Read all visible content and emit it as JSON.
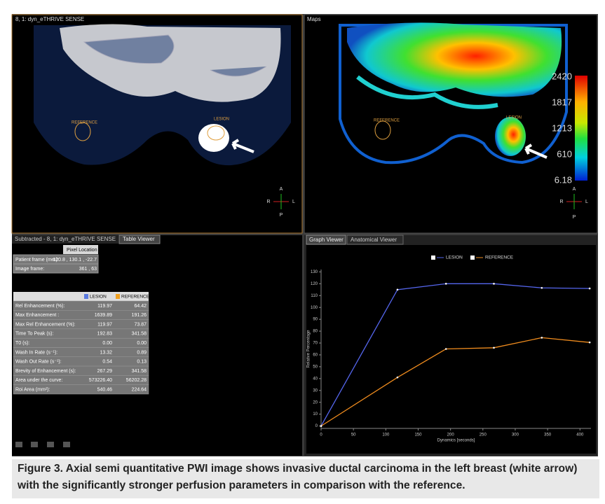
{
  "viewer": {
    "top_left": {
      "title": "8, 1: dyn_eTHRIVE SENSE",
      "roi_reference": "REFERENCE",
      "roi_lesion": "LESION",
      "orient": [
        "A",
        "R",
        "L",
        "P"
      ]
    },
    "top_right": {
      "title": "Maps",
      "roi_reference": "REFERENCE",
      "roi_lesion": "LESION",
      "colorbar_labels": [
        "2420",
        "1817",
        "1213",
        "610",
        "6.18"
      ],
      "orient": [
        "A",
        "R",
        "L",
        "P"
      ]
    },
    "bottom_left": {
      "tabs": [
        "Subtracted - 8, 1: dyn_eTHRIVE SENSE",
        "Table Viewer"
      ],
      "pixel_header": "Pixel Location",
      "pixel_rows": [
        [
          "Patient frame (mm):",
          "-120.8 , 130.1 , -22.7"
        ],
        [
          "Image frame:",
          "361 , 63"
        ]
      ],
      "param_header": [
        "LESION",
        "REFERENCE"
      ],
      "param_rows": [
        [
          "Rel Enhancement  (%):",
          "119.97",
          "64.42"
        ],
        [
          "Max Enhancement :",
          "1639.89",
          "191.26"
        ],
        [
          "Max Rel Enhancement (%):",
          "119.97",
          "73.87"
        ],
        [
          "Time To Peak  (s):",
          "192.83",
          "341.58"
        ],
        [
          "T0 (s):",
          "0.00",
          "0.00"
        ],
        [
          "Wash In Rate (s⁻¹):",
          "13.32",
          "0.89"
        ],
        [
          "Wash Out Rate (s⁻¹):",
          "0.54",
          "0.13"
        ],
        [
          "Brevity of Enhancement (s):",
          "267.29",
          "341.58"
        ],
        [
          "Area under the curve:",
          "573226.40",
          "56202.28"
        ],
        [
          "Roi Area (mm²):",
          "540.46",
          "224.64"
        ]
      ]
    },
    "bottom_right": {
      "tabs": [
        "Graph Viewer",
        "Anatomical Viewer"
      ]
    }
  },
  "chart_data": {
    "type": "line",
    "x_label": "Dynamics [seconds]",
    "y_label": "Relative Percentage",
    "x": [
      0,
      118,
      193,
      267,
      341,
      415
    ],
    "series": [
      {
        "name": "LESION",
        "color": "#5566ee",
        "values": [
          0,
          115,
          120,
          120,
          116.5,
          116
        ]
      },
      {
        "name": "REFERENCE",
        "color": "#f08c1e",
        "values": [
          0,
          41,
          65,
          66,
          74.5,
          70.5
        ]
      }
    ],
    "xlim": [
      0,
      417
    ],
    "ylim": [
      -2,
      132
    ],
    "xticks": [
      0,
      50,
      100,
      150,
      200,
      250,
      300,
      350,
      400
    ],
    "yticks": [
      0,
      10,
      20,
      30,
      40,
      50,
      60,
      70,
      80,
      90,
      100,
      110,
      120,
      130
    ]
  },
  "caption": "Figure 3. Axial semi quantitative PWI image shows invasive ductal carcinoma in the left breast (white arrow) with the significantly stronger perfusion parameters in comparison with the reference."
}
